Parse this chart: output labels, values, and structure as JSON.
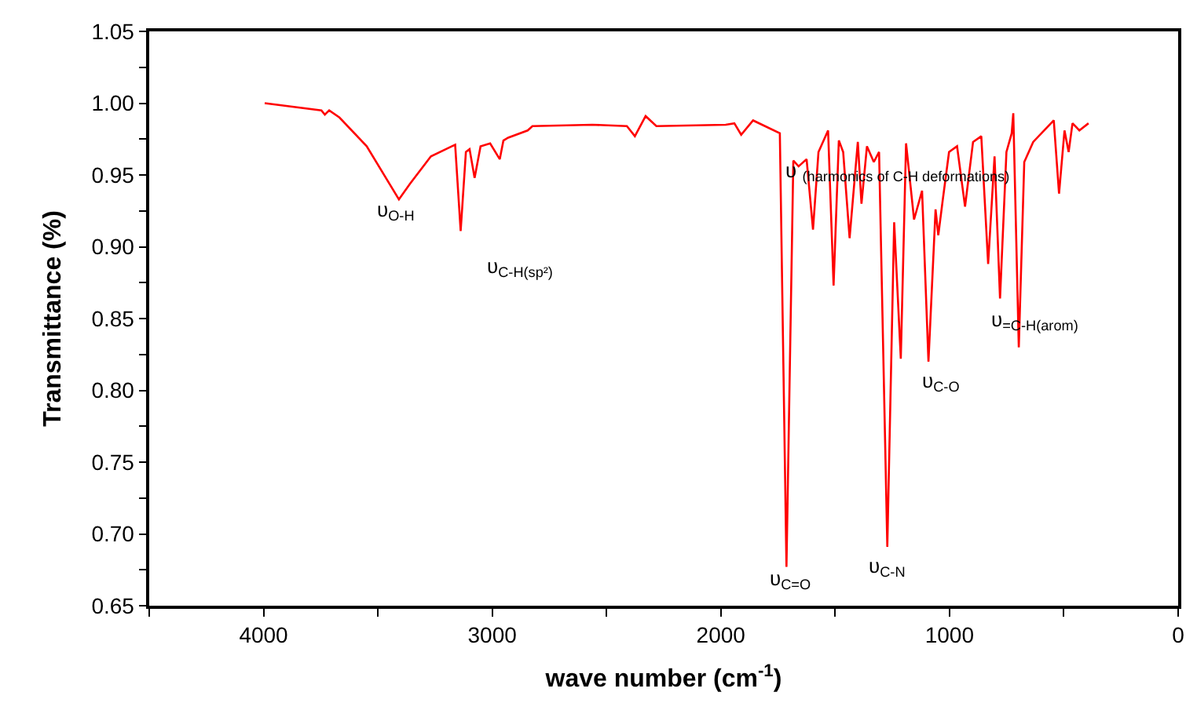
{
  "chart_data": {
    "type": "line",
    "xlabel": "wave number (cm$^{-1}$)",
    "ylabel": "Transmittance (%)",
    "xlim": [
      4500,
      0
    ],
    "xticks": [
      {
        "value": 4500,
        "label": null
      },
      4000,
      {
        "value": 3500,
        "label": null
      },
      3000,
      {
        "value": 2500,
        "label": null
      },
      2000,
      {
        "value": 1500,
        "label": null
      },
      1000,
      {
        "value": 500,
        "label": null
      },
      0
    ],
    "ylim": [
      0.65,
      1.05
    ],
    "yticks": [
      {
        "value": 0.65,
        "label": "0.65"
      },
      {
        "value": 0.675,
        "label": null
      },
      {
        "value": 0.7,
        "label": "0.70"
      },
      {
        "value": 0.725,
        "label": null
      },
      {
        "value": 0.75,
        "label": "0.75"
      },
      {
        "value": 0.775,
        "label": null
      },
      {
        "value": 0.8,
        "label": "0.80"
      },
      {
        "value": 0.825,
        "label": null
      },
      {
        "value": 0.85,
        "label": "0.85"
      },
      {
        "value": 0.875,
        "label": null
      },
      {
        "value": 0.9,
        "label": "0.90"
      },
      {
        "value": 0.925,
        "label": null
      },
      {
        "value": 0.95,
        "label": "0.95"
      },
      {
        "value": 0.975,
        "label": null
      },
      {
        "value": 1.0,
        "label": "1.00"
      },
      {
        "value": 1.025,
        "label": null
      },
      {
        "value": 1.05,
        "label": "1.05"
      }
    ],
    "marker": "none",
    "line_style": "solid",
    "series": [
      {
        "color": "#ff0000",
        "x": [
          3995,
          3747,
          3732,
          3713,
          3668,
          3549,
          3408,
          3359,
          3268,
          3176,
          3162,
          3138,
          3115,
          3099,
          3077,
          3051,
          3009,
          2967,
          2951,
          2930,
          2845,
          2824,
          2563,
          2411,
          2376,
          2329,
          2282,
          1979,
          1941,
          1911,
          1859,
          1742,
          1713,
          1683,
          1660,
          1625,
          1597,
          1573,
          1531,
          1507,
          1484,
          1465,
          1437,
          1401,
          1385,
          1361,
          1331,
          1308,
          1272,
          1242,
          1213,
          1190,
          1155,
          1120,
          1092,
          1061,
          1049,
          1030,
          1002,
          967,
          932,
          897,
          861,
          831,
          803,
          779,
          751,
          728,
          721,
          697,
          673,
          634,
          544,
          521,
          497,
          479,
          462,
          432,
          392
        ],
        "values": [
          1.0,
          0.995,
          0.992,
          0.995,
          0.99,
          0.97,
          0.933,
          0.944,
          0.963,
          0.97,
          0.971,
          0.911,
          0.966,
          0.968,
          0.948,
          0.97,
          0.972,
          0.961,
          0.974,
          0.976,
          0.981,
          0.984,
          0.985,
          0.984,
          0.977,
          0.991,
          0.984,
          0.985,
          0.986,
          0.978,
          0.988,
          0.979,
          0.677,
          0.96,
          0.956,
          0.961,
          0.912,
          0.966,
          0.981,
          0.873,
          0.974,
          0.966,
          0.906,
          0.973,
          0.93,
          0.97,
          0.959,
          0.966,
          0.691,
          0.917,
          0.822,
          0.972,
          0.919,
          0.939,
          0.82,
          0.926,
          0.908,
          0.932,
          0.966,
          0.97,
          0.928,
          0.973,
          0.977,
          0.888,
          0.963,
          0.864,
          0.966,
          0.979,
          0.993,
          0.83,
          0.959,
          0.973,
          0.988,
          0.937,
          0.981,
          0.966,
          0.986,
          0.981,
          0.986
        ]
      }
    ],
    "annotations": [
      "υ$_{O-H}$",
      "υ$_{C-H(sp²)}$",
      "υ $_{(harmonics of C-H deformations)}$",
      "υ$_{C=O}$",
      "υ$_{C-N}$",
      "υ$_{C-O}$",
      "υ$_{=C-H(arom)}$"
    ]
  }
}
